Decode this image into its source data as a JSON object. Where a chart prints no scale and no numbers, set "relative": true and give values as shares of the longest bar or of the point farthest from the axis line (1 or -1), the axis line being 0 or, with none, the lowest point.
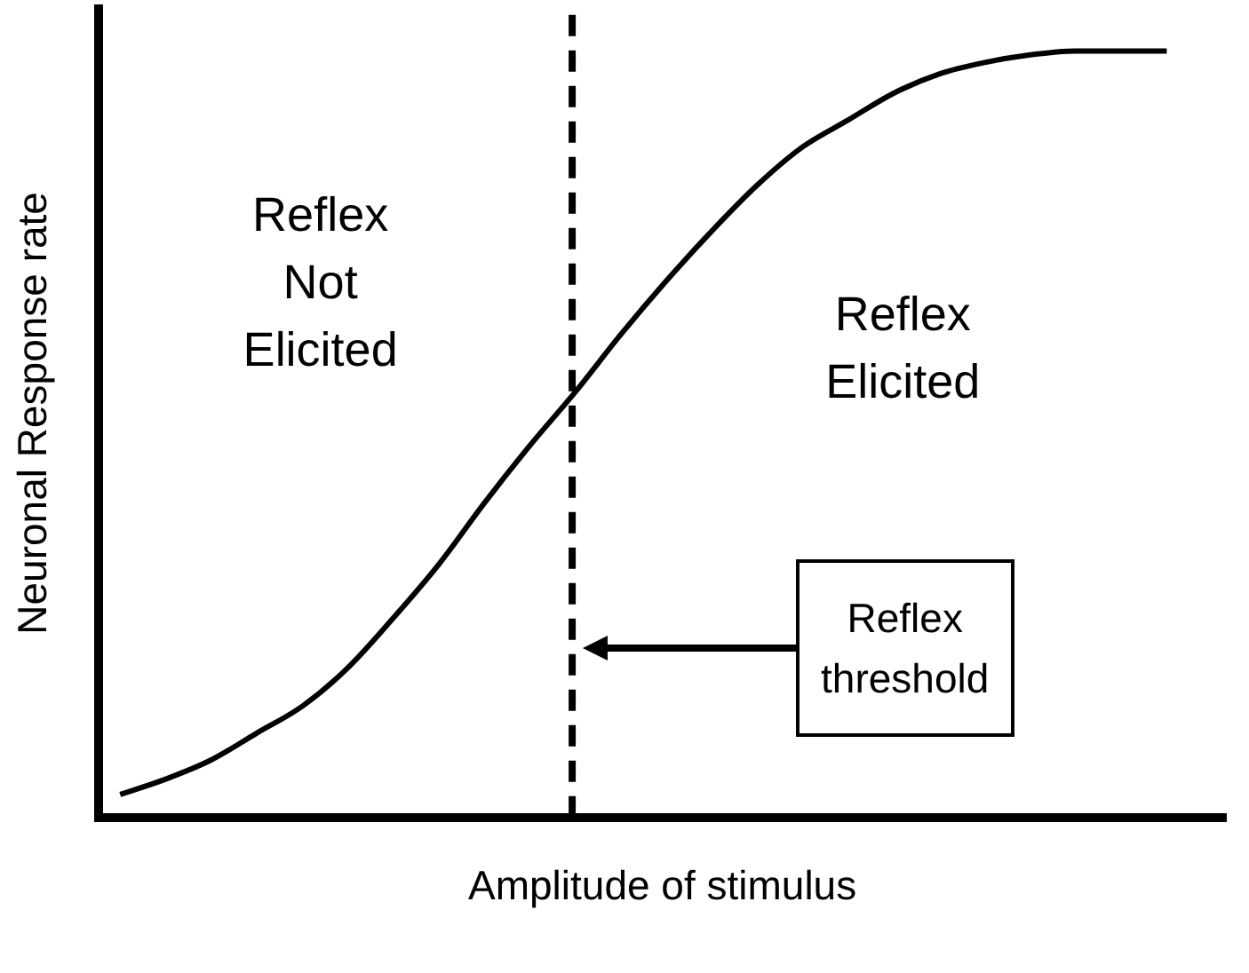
{
  "chart_data": {
    "type": "line",
    "relative": true,
    "xlabel": "Amplitude of stimulus",
    "ylabel": "Neuronal Response rate",
    "categories": [
      null,
      null,
      null,
      null,
      null,
      null,
      null,
      null,
      null,
      null,
      null,
      null,
      null,
      null,
      null,
      null,
      null,
      null,
      null,
      null,
      null,
      null,
      null,
      null
    ],
    "series": [
      {
        "color": "#000000",
        "values": [
          0.03,
          0.05,
          0.075,
          0.11,
          0.145,
          0.195,
          0.26,
          0.33,
          0.41,
          0.485,
          0.555,
          0.63,
          0.7,
          0.765,
          0.825,
          0.875,
          0.91,
          0.945,
          0.97,
          0.985,
          0.995,
          1,
          1,
          1
        ]
      }
    ],
    "annotations": [
      "Reflex\nNot\nElicited",
      "Reflex\nElicited",
      "Reflex\nthreshold"
    ],
    "grid": false,
    "legend": false,
    "marker": "none",
    "line_style": "solid"
  }
}
